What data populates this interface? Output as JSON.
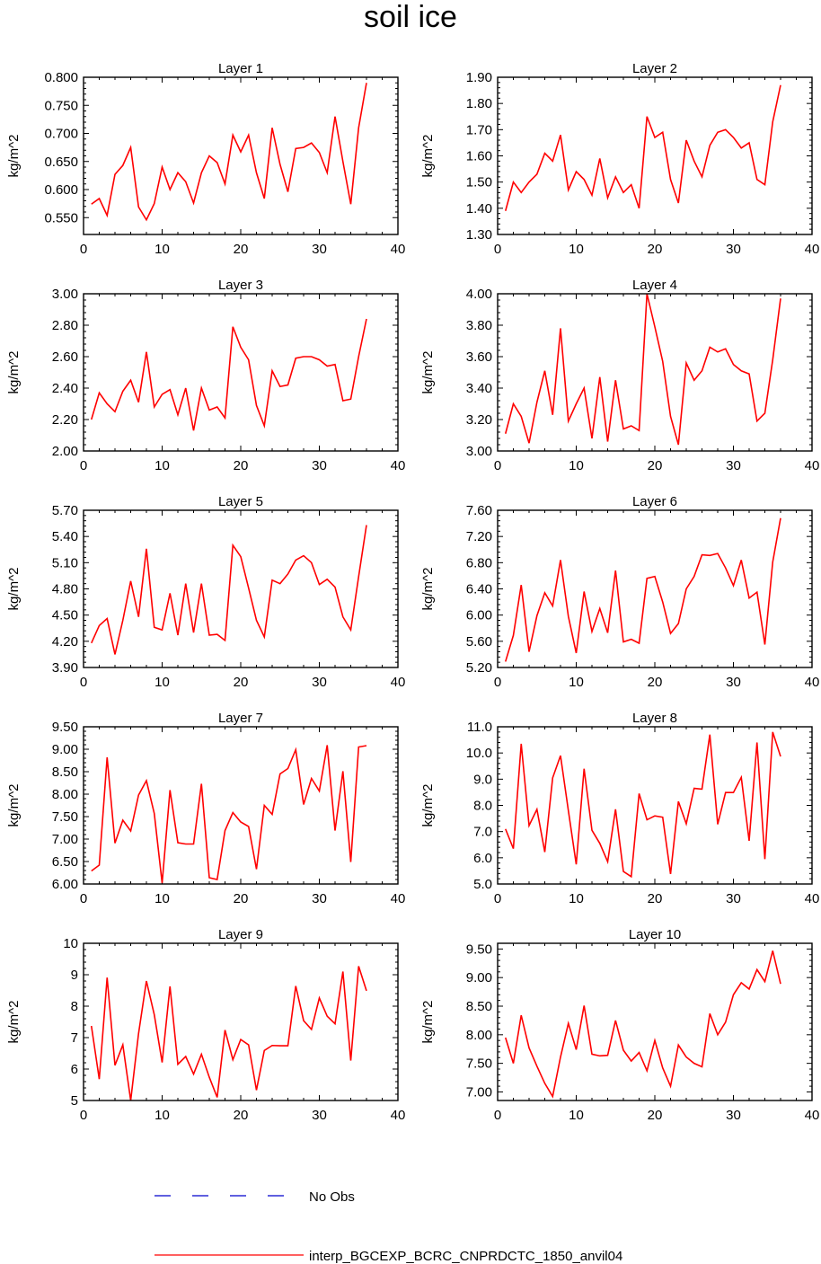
{
  "page": {
    "title": "soil ice"
  },
  "legend": {
    "entries": [
      {
        "label": "No Obs",
        "color": "#0000cc",
        "dash": "dashed"
      },
      {
        "label": "interp_BGCEXP_BCRC_CNPRDCTC_1850_anvil04",
        "color": "#ff0000",
        "dash": "solid"
      }
    ]
  },
  "chart_data": [
    {
      "type": "line",
      "title": "Layer 1",
      "ylabel": "kg/m^2",
      "xlim": [
        0,
        40
      ],
      "xticks": [
        0,
        10,
        20,
        30,
        40
      ],
      "ylim": [
        0.52,
        0.8
      ],
      "yticks": [
        0.55,
        0.6,
        0.65,
        0.7,
        0.75,
        0.8
      ],
      "ytick_labels": [
        "0.550",
        "0.600",
        "0.650",
        "0.700",
        "0.750",
        "0.800"
      ],
      "series": [
        {
          "color": "#ff0000",
          "x": [
            1,
            2,
            3,
            4,
            5,
            6,
            7,
            8,
            9,
            10,
            11,
            12,
            13,
            14,
            15,
            16,
            17,
            18,
            19,
            20,
            21,
            22,
            23,
            24,
            25,
            26,
            27,
            28,
            29,
            30,
            31,
            32,
            33,
            34,
            35,
            36
          ],
          "values": [
            0.574,
            0.584,
            0.554,
            0.627,
            0.643,
            0.675,
            0.569,
            0.546,
            0.575,
            0.64,
            0.6,
            0.63,
            0.614,
            0.576,
            0.63,
            0.66,
            0.648,
            0.61,
            0.697,
            0.667,
            0.697,
            0.63,
            0.584,
            0.71,
            0.645,
            0.596,
            0.673,
            0.675,
            0.683,
            0.666,
            0.63,
            0.73,
            0.65,
            0.574,
            0.71,
            0.79
          ]
        }
      ]
    },
    {
      "type": "line",
      "title": "Layer 2",
      "ylabel": "kg/m^2",
      "xlim": [
        0,
        40
      ],
      "xticks": [
        0,
        10,
        20,
        30,
        40
      ],
      "ylim": [
        1.3,
        1.9
      ],
      "yticks": [
        1.3,
        1.4,
        1.5,
        1.6,
        1.7,
        1.8,
        1.9
      ],
      "ytick_labels": [
        "1.30",
        "1.40",
        "1.50",
        "1.60",
        "1.70",
        "1.80",
        "1.90"
      ],
      "series": [
        {
          "color": "#ff0000",
          "x": [
            1,
            2,
            3,
            4,
            5,
            6,
            7,
            8,
            9,
            10,
            11,
            12,
            13,
            14,
            15,
            16,
            17,
            18,
            19,
            20,
            21,
            22,
            23,
            24,
            25,
            26,
            27,
            28,
            29,
            30,
            31,
            32,
            33,
            34,
            35,
            36
          ],
          "values": [
            1.39,
            1.5,
            1.46,
            1.5,
            1.53,
            1.61,
            1.58,
            1.68,
            1.47,
            1.54,
            1.51,
            1.45,
            1.59,
            1.44,
            1.52,
            1.46,
            1.49,
            1.4,
            1.75,
            1.67,
            1.69,
            1.51,
            1.42,
            1.66,
            1.58,
            1.52,
            1.64,
            1.69,
            1.7,
            1.67,
            1.63,
            1.65,
            1.51,
            1.49,
            1.73,
            1.87
          ]
        }
      ]
    },
    {
      "type": "line",
      "title": "Layer 3",
      "ylabel": "kg/m^2",
      "xlim": [
        0,
        40
      ],
      "xticks": [
        0,
        10,
        20,
        30,
        40
      ],
      "ylim": [
        2.0,
        3.0
      ],
      "yticks": [
        2.0,
        2.2,
        2.4,
        2.6,
        2.8,
        3.0
      ],
      "ytick_labels": [
        "2.00",
        "2.20",
        "2.40",
        "2.60",
        "2.80",
        "3.00"
      ],
      "series": [
        {
          "color": "#ff0000",
          "x": [
            1,
            2,
            3,
            4,
            5,
            6,
            7,
            8,
            9,
            10,
            11,
            12,
            13,
            14,
            15,
            16,
            17,
            18,
            19,
            20,
            21,
            22,
            23,
            24,
            25,
            26,
            27,
            28,
            29,
            30,
            31,
            32,
            33,
            34,
            35,
            36
          ],
          "values": [
            2.2,
            2.37,
            2.3,
            2.25,
            2.38,
            2.45,
            2.31,
            2.63,
            2.28,
            2.36,
            2.39,
            2.23,
            2.4,
            2.13,
            2.4,
            2.26,
            2.28,
            2.21,
            2.79,
            2.66,
            2.58,
            2.29,
            2.16,
            2.51,
            2.41,
            2.42,
            2.59,
            2.6,
            2.6,
            2.58,
            2.54,
            2.55,
            2.32,
            2.33,
            2.6,
            2.84
          ]
        }
      ]
    },
    {
      "type": "line",
      "title": "Layer 4",
      "ylabel": "kg/m^2",
      "xlim": [
        0,
        40
      ],
      "xticks": [
        0,
        10,
        20,
        30,
        40
      ],
      "ylim": [
        3.0,
        4.0
      ],
      "yticks": [
        3.0,
        3.2,
        3.4,
        3.6,
        3.8,
        4.0
      ],
      "ytick_labels": [
        "3.00",
        "3.20",
        "3.40",
        "3.60",
        "3.80",
        "4.00"
      ],
      "series": [
        {
          "color": "#ff0000",
          "x": [
            1,
            2,
            3,
            4,
            5,
            6,
            7,
            8,
            9,
            10,
            11,
            12,
            13,
            14,
            15,
            16,
            17,
            18,
            19,
            20,
            21,
            22,
            23,
            24,
            25,
            26,
            27,
            28,
            29,
            30,
            31,
            32,
            33,
            34,
            35,
            36
          ],
          "values": [
            3.11,
            3.3,
            3.22,
            3.05,
            3.31,
            3.51,
            3.23,
            3.78,
            3.19,
            3.3,
            3.4,
            3.08,
            3.47,
            3.06,
            3.45,
            3.14,
            3.16,
            3.13,
            4.0,
            3.79,
            3.57,
            3.22,
            3.04,
            3.56,
            3.45,
            3.51,
            3.66,
            3.63,
            3.65,
            3.55,
            3.51,
            3.49,
            3.19,
            3.24,
            3.58,
            3.97
          ]
        }
      ]
    },
    {
      "type": "line",
      "title": "Layer 5",
      "ylabel": "kg/m^2",
      "xlim": [
        0,
        40
      ],
      "xticks": [
        0,
        10,
        20,
        30,
        40
      ],
      "ylim": [
        3.9,
        5.7
      ],
      "yticks": [
        3.9,
        4.2,
        4.5,
        4.8,
        5.1,
        5.4,
        5.7
      ],
      "ytick_labels": [
        "3.90",
        "4.20",
        "4.50",
        "4.80",
        "5.10",
        "5.40",
        "5.70"
      ],
      "series": [
        {
          "color": "#ff0000",
          "x": [
            1,
            2,
            3,
            4,
            5,
            6,
            7,
            8,
            9,
            10,
            11,
            12,
            13,
            14,
            15,
            16,
            17,
            18,
            19,
            20,
            21,
            22,
            23,
            24,
            25,
            26,
            27,
            28,
            29,
            30,
            31,
            32,
            33,
            34,
            35,
            36
          ],
          "values": [
            4.18,
            4.38,
            4.46,
            4.05,
            4.44,
            4.89,
            4.48,
            5.26,
            4.36,
            4.33,
            4.75,
            4.27,
            4.86,
            4.3,
            4.86,
            4.27,
            4.28,
            4.21,
            5.3,
            5.17,
            4.81,
            4.44,
            4.25,
            4.9,
            4.86,
            4.97,
            5.13,
            5.18,
            5.1,
            4.85,
            4.91,
            4.82,
            4.48,
            4.33,
            4.94,
            5.53
          ]
        }
      ]
    },
    {
      "type": "line",
      "title": "Layer 6",
      "ylabel": "kg/m^2",
      "xlim": [
        0,
        40
      ],
      "xticks": [
        0,
        10,
        20,
        30,
        40
      ],
      "ylim": [
        5.2,
        7.6
      ],
      "yticks": [
        5.2,
        5.6,
        6.0,
        6.4,
        6.8,
        7.2,
        7.6
      ],
      "ytick_labels": [
        "5.20",
        "5.60",
        "6.00",
        "6.40",
        "6.80",
        "7.20",
        "7.60"
      ],
      "series": [
        {
          "color": "#ff0000",
          "x": [
            1,
            2,
            3,
            4,
            5,
            6,
            7,
            8,
            9,
            10,
            11,
            12,
            13,
            14,
            15,
            16,
            17,
            18,
            19,
            20,
            21,
            22,
            23,
            24,
            25,
            26,
            27,
            28,
            29,
            30,
            31,
            32,
            33,
            34,
            35,
            36
          ],
          "values": [
            5.29,
            5.69,
            6.46,
            5.44,
            5.99,
            6.34,
            6.14,
            6.84,
            5.98,
            5.42,
            6.36,
            5.75,
            6.1,
            5.73,
            6.68,
            5.59,
            5.63,
            5.57,
            6.56,
            6.59,
            6.2,
            5.72,
            5.87,
            6.4,
            6.59,
            6.92,
            6.91,
            6.94,
            6.72,
            6.45,
            6.84,
            6.26,
            6.35,
            5.55,
            6.81,
            7.48
          ]
        }
      ]
    },
    {
      "type": "line",
      "title": "Layer 7",
      "ylabel": "kg/m^2",
      "xlim": [
        0,
        40
      ],
      "xticks": [
        0,
        10,
        20,
        30,
        40
      ],
      "ylim": [
        6.0,
        9.5
      ],
      "yticks": [
        6.0,
        6.5,
        7.0,
        7.5,
        8.0,
        8.5,
        9.0,
        9.5
      ],
      "ytick_labels": [
        "6.00",
        "6.50",
        "7.00",
        "7.50",
        "8.00",
        "8.50",
        "9.00",
        "9.50"
      ],
      "series": [
        {
          "color": "#ff0000",
          "x": [
            1,
            2,
            3,
            4,
            5,
            6,
            7,
            8,
            9,
            10,
            11,
            12,
            13,
            14,
            15,
            16,
            17,
            18,
            19,
            20,
            21,
            22,
            23,
            24,
            25,
            26,
            27,
            28,
            29,
            30,
            31,
            32,
            33,
            34,
            35,
            36
          ],
          "values": [
            6.29,
            6.42,
            8.82,
            6.91,
            7.42,
            7.18,
            7.98,
            8.3,
            7.57,
            6.02,
            8.09,
            6.92,
            6.89,
            6.89,
            8.23,
            6.14,
            6.1,
            7.19,
            7.59,
            7.38,
            7.28,
            6.33,
            7.75,
            7.55,
            8.45,
            8.57,
            8.99,
            7.77,
            8.35,
            8.07,
            9.09,
            7.19,
            8.51,
            6.49,
            9.05,
            9.08
          ]
        }
      ]
    },
    {
      "type": "line",
      "title": "Layer 8",
      "ylabel": "kg/m^2",
      "xlim": [
        0,
        40
      ],
      "xticks": [
        0,
        10,
        20,
        30,
        40
      ],
      "ylim": [
        5.0,
        11.0
      ],
      "yticks": [
        5.0,
        6.0,
        7.0,
        8.0,
        9.0,
        10.0,
        11.0
      ],
      "ytick_labels": [
        "5.0",
        "6.0",
        "7.0",
        "8.0",
        "9.0",
        "10.0",
        "11.0"
      ],
      "series": [
        {
          "color": "#ff0000",
          "x": [
            1,
            2,
            3,
            4,
            5,
            6,
            7,
            8,
            9,
            10,
            11,
            12,
            13,
            14,
            15,
            16,
            17,
            18,
            19,
            20,
            21,
            22,
            23,
            24,
            25,
            26,
            27,
            28,
            29,
            30,
            31,
            32,
            33,
            34,
            35,
            36
          ],
          "values": [
            7.1,
            6.35,
            10.35,
            7.23,
            7.85,
            6.22,
            9.05,
            9.9,
            7.8,
            5.75,
            9.4,
            7.05,
            6.55,
            5.85,
            7.85,
            5.48,
            5.28,
            8.45,
            7.45,
            7.6,
            7.55,
            5.38,
            8.15,
            7.3,
            8.65,
            8.62,
            10.7,
            7.28,
            8.49,
            8.49,
            9.07,
            6.65,
            10.4,
            5.95,
            10.8,
            9.87
          ]
        }
      ]
    },
    {
      "type": "line",
      "title": "Layer 9",
      "ylabel": "kg/m^2",
      "xlim": [
        0,
        40
      ],
      "xticks": [
        0,
        10,
        20,
        30,
        40
      ],
      "ylim": [
        5,
        10
      ],
      "yticks": [
        5,
        6,
        7,
        8,
        9,
        10
      ],
      "ytick_labels": [
        "5",
        "6",
        "7",
        "8",
        "9",
        "10"
      ],
      "series": [
        {
          "color": "#ff0000",
          "x": [
            1,
            2,
            3,
            4,
            5,
            6,
            7,
            8,
            9,
            10,
            11,
            12,
            13,
            14,
            15,
            16,
            17,
            18,
            19,
            20,
            21,
            22,
            23,
            24,
            25,
            26,
            27,
            28,
            29,
            30,
            31,
            32,
            33,
            34,
            35,
            36
          ],
          "values": [
            7.37,
            5.68,
            8.91,
            6.12,
            6.77,
            5.0,
            7.13,
            8.8,
            7.73,
            6.21,
            8.63,
            6.15,
            6.4,
            5.84,
            6.47,
            5.74,
            5.1,
            7.24,
            6.3,
            6.94,
            6.77,
            5.33,
            6.59,
            6.75,
            6.74,
            6.74,
            8.64,
            7.54,
            7.26,
            8.26,
            7.68,
            7.44,
            9.1,
            6.27,
            9.27,
            8.49
          ]
        }
      ]
    },
    {
      "type": "line",
      "title": "Layer 10",
      "ylabel": "kg/m^2",
      "xlim": [
        0,
        40
      ],
      "xticks": [
        0,
        10,
        20,
        30,
        40
      ],
      "ylim": [
        6.85,
        9.6
      ],
      "yticks": [
        7.0,
        7.5,
        8.0,
        8.5,
        9.0,
        9.5
      ],
      "ytick_labels": [
        "7.00",
        "7.50",
        "8.00",
        "8.50",
        "9.00",
        "9.50"
      ],
      "series": [
        {
          "color": "#ff0000",
          "x": [
            1,
            2,
            3,
            4,
            5,
            6,
            7,
            8,
            9,
            10,
            11,
            12,
            13,
            14,
            15,
            16,
            17,
            18,
            19,
            20,
            21,
            22,
            23,
            24,
            25,
            26,
            27,
            28,
            29,
            30,
            31,
            32,
            33,
            34,
            35,
            36
          ],
          "values": [
            7.95,
            7.5,
            8.34,
            7.77,
            7.45,
            7.15,
            6.92,
            7.61,
            8.2,
            7.74,
            8.51,
            7.66,
            7.63,
            7.64,
            8.25,
            7.73,
            7.54,
            7.69,
            7.37,
            7.9,
            7.42,
            7.1,
            7.82,
            7.61,
            7.5,
            7.44,
            8.37,
            8.0,
            8.22,
            8.7,
            8.91,
            8.8,
            9.14,
            8.93,
            9.47,
            8.89
          ]
        }
      ]
    }
  ]
}
